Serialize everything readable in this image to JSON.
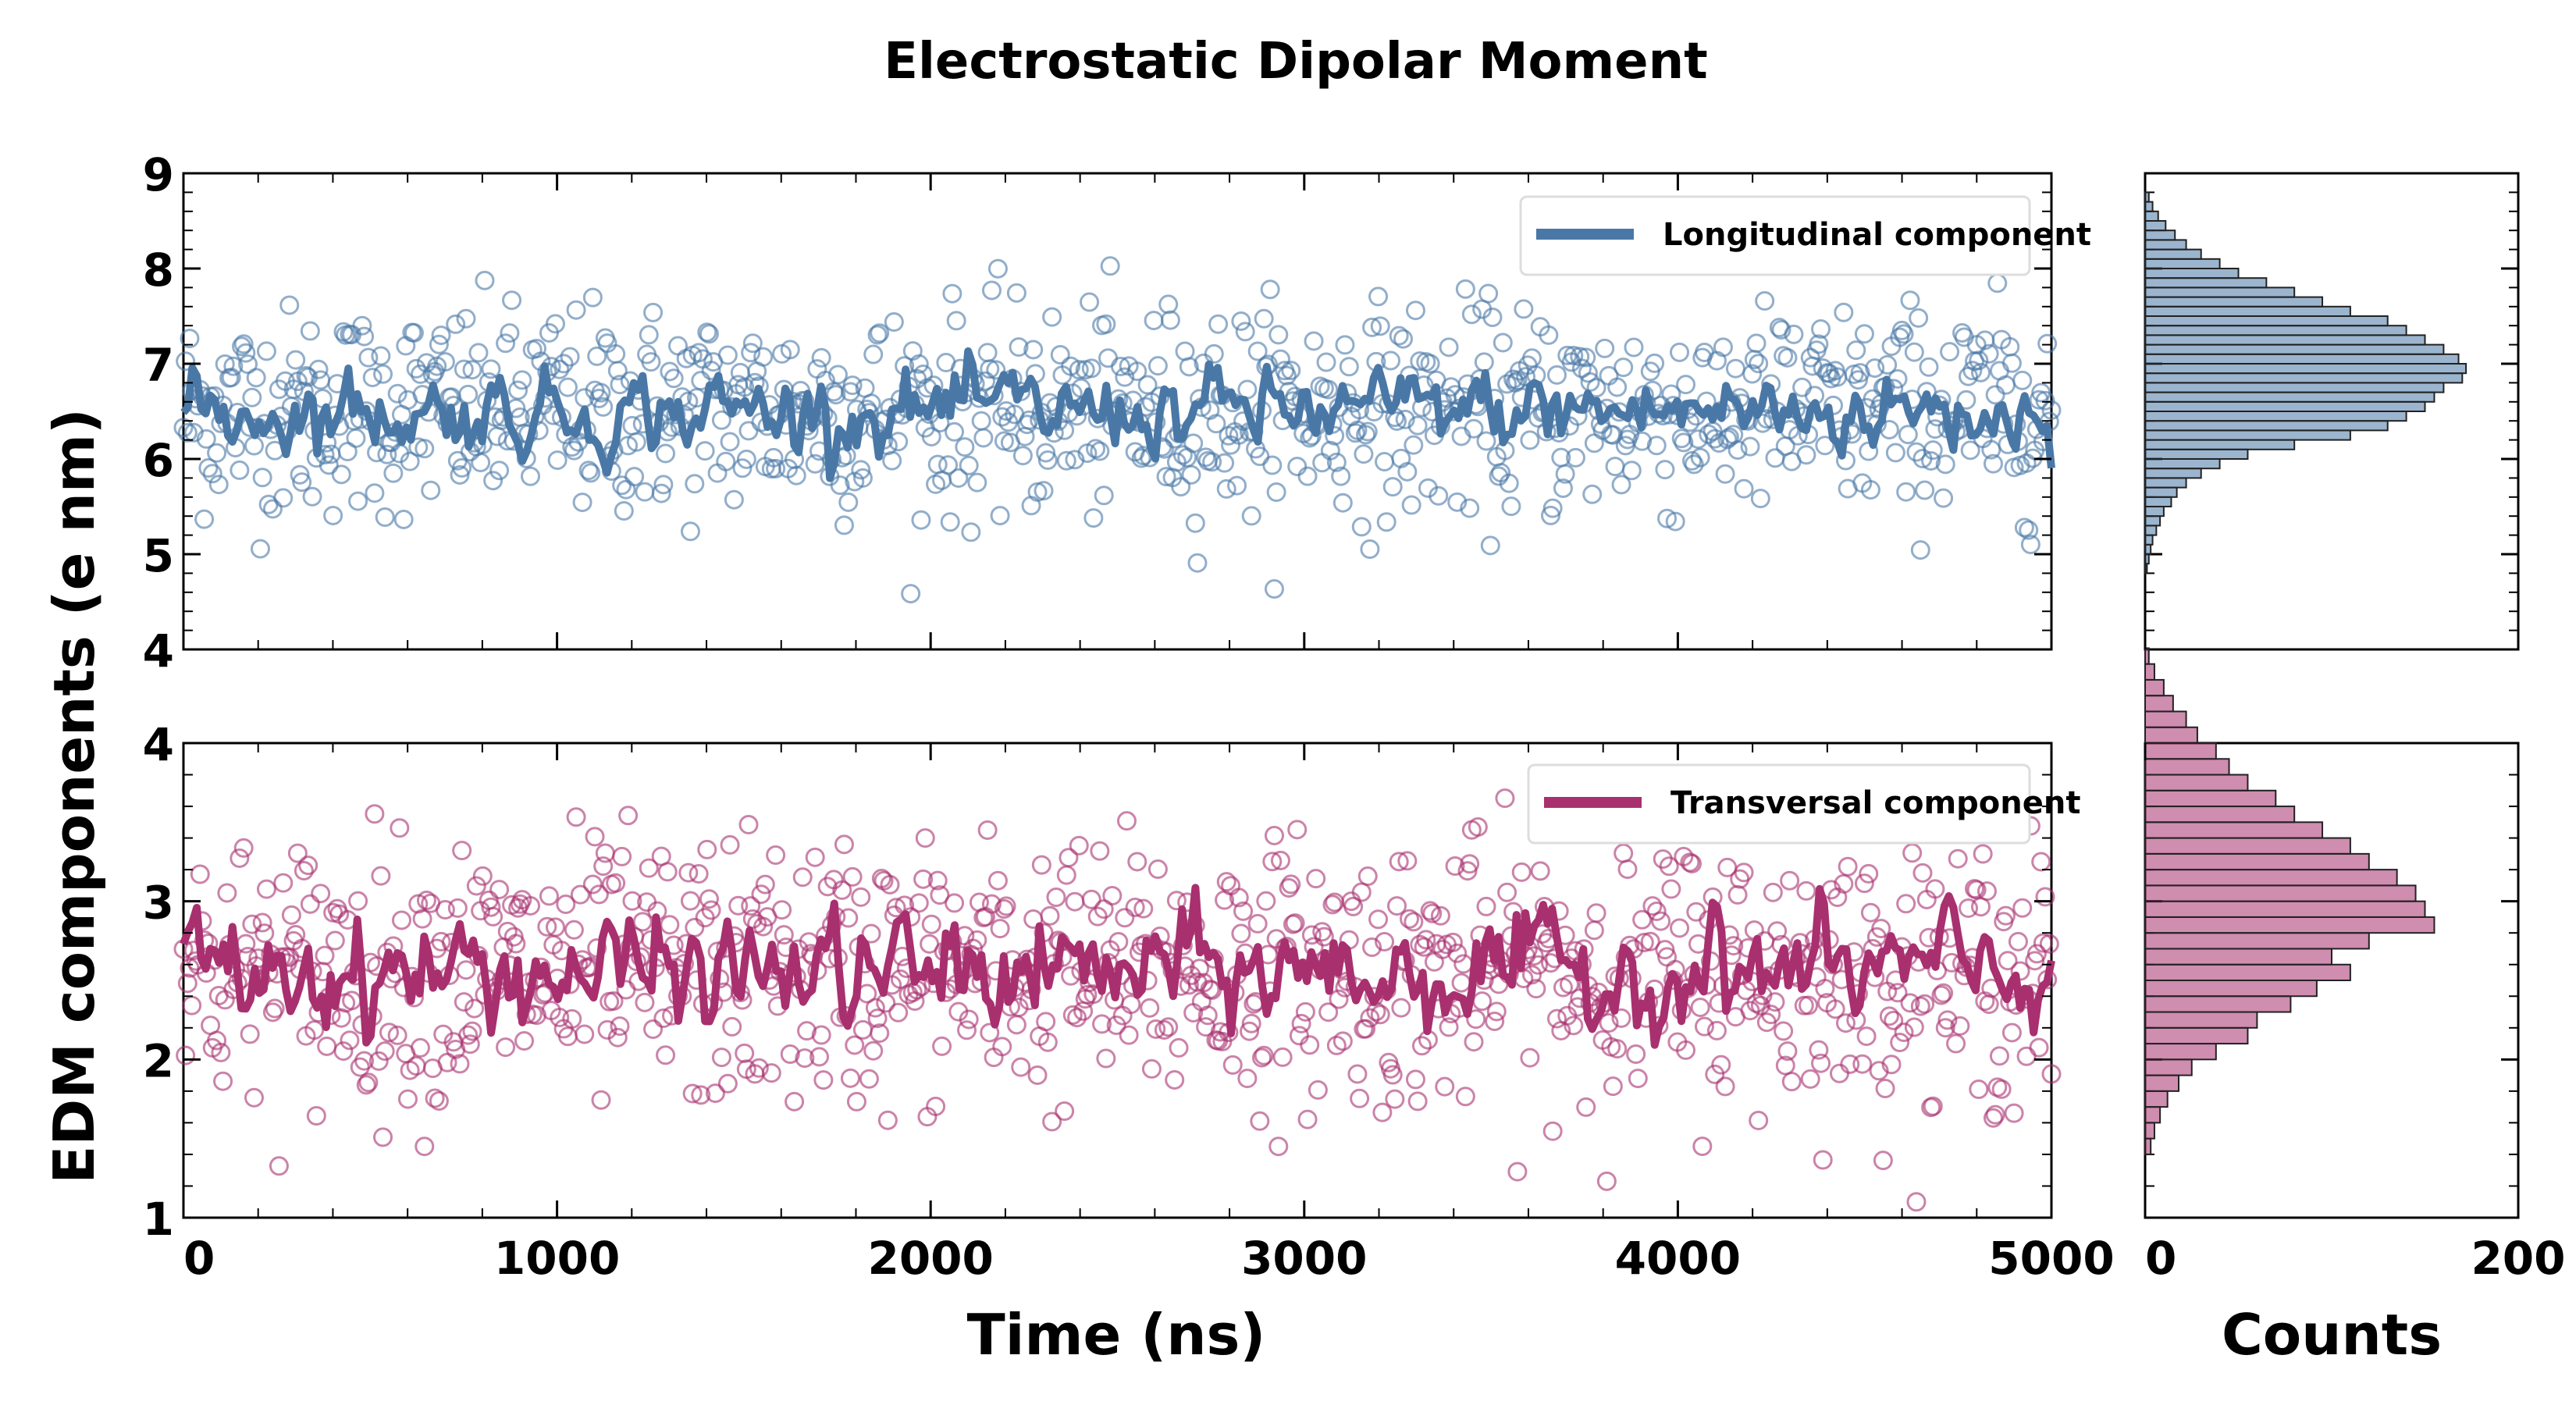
{
  "chart_data": {
    "type": "scatter",
    "title": "Electrostatic Dipolar Moment",
    "ylabel": "EDM components (e nm)",
    "xlabel": "Time (ns)",
    "hist_xlabel": "Counts",
    "xlim": [
      0,
      5000
    ],
    "xticks": [
      "0",
      "1000",
      "2000",
      "3000",
      "4000",
      "5000"
    ],
    "hist_xlim": [
      0,
      200
    ],
    "hist_xticks": [
      "0",
      "200"
    ],
    "grid": false,
    "legend_placement": "top-right",
    "panels": [
      {
        "name": "Longitudinal component",
        "color": "#4a78a6",
        "ylim": [
          4,
          9
        ],
        "yticks": [
          "4",
          "5",
          "6",
          "7",
          "8",
          "9"
        ],
        "mean": 6.5,
        "scatter_sd": 0.55,
        "smooth_sd": 0.18,
        "hist": {
          "bin_start": 4.8,
          "bin_width": 0.1,
          "counts": [
            1,
            2,
            3,
            4,
            6,
            8,
            10,
            14,
            17,
            22,
            30,
            40,
            55,
            80,
            110,
            130,
            140,
            150,
            155,
            160,
            170,
            172,
            168,
            160,
            150,
            140,
            130,
            110,
            95,
            80,
            65,
            50,
            40,
            30,
            22,
            16,
            11,
            7,
            4,
            2
          ]
        }
      },
      {
        "name": "Transversal component",
        "color": "#a8306f",
        "ylim": [
          1,
          4
        ],
        "yticks": [
          "1",
          "2",
          "3",
          "4"
        ],
        "mean": 2.55,
        "scatter_sd": 0.42,
        "smooth_sd": 0.15,
        "hist": {
          "bin_start": 1.4,
          "bin_width": 0.1,
          "counts": [
            3,
            5,
            8,
            12,
            18,
            25,
            38,
            55,
            60,
            78,
            92,
            110,
            100,
            120,
            155,
            150,
            145,
            135,
            120,
            110,
            95,
            80,
            70,
            55,
            45,
            38,
            28,
            22,
            15,
            10,
            5,
            2
          ]
        }
      }
    ]
  }
}
